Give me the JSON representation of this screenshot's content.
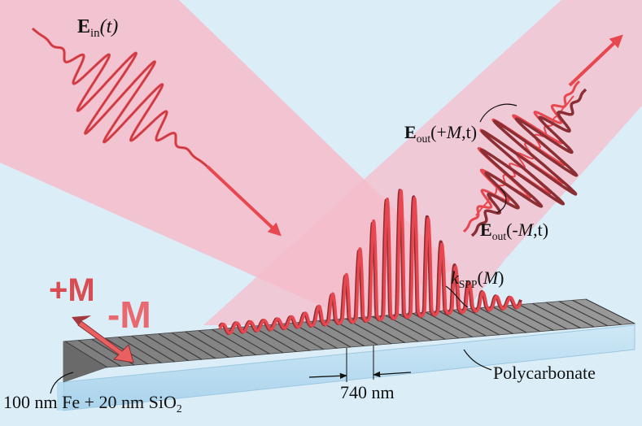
{
  "labels": {
    "ein": {
      "sym": "E",
      "sub": "in",
      "arg": "(t)"
    },
    "eout_plus": {
      "sym": "E",
      "sub": "out",
      "open": "(+",
      "m": "M",
      "close": ",t)"
    },
    "eout_minus": {
      "sym": "E",
      "sub": "out",
      "open": "(-",
      "m": "M",
      "close": ",t)"
    },
    "kspp": {
      "sym": "k",
      "sub": "SPP",
      "open": "(",
      "m": "M",
      "close": ")"
    },
    "polycarbonate": "Polycarbonate",
    "period": "740 nm",
    "layers": {
      "main": "100 nm Fe + 20 nm SiO",
      "sub": "2"
    },
    "mag_plus": "+M",
    "mag_minus": "-M"
  },
  "colors": {
    "beam": "#f4b2c2",
    "wave_front": "#e8474f",
    "wave_back": "#8c2f34",
    "grating_top": "#8f8f8f",
    "grating_dark": "#5a5a5a",
    "substrate": "#bfe0f2",
    "background": "#dbeef8"
  }
}
